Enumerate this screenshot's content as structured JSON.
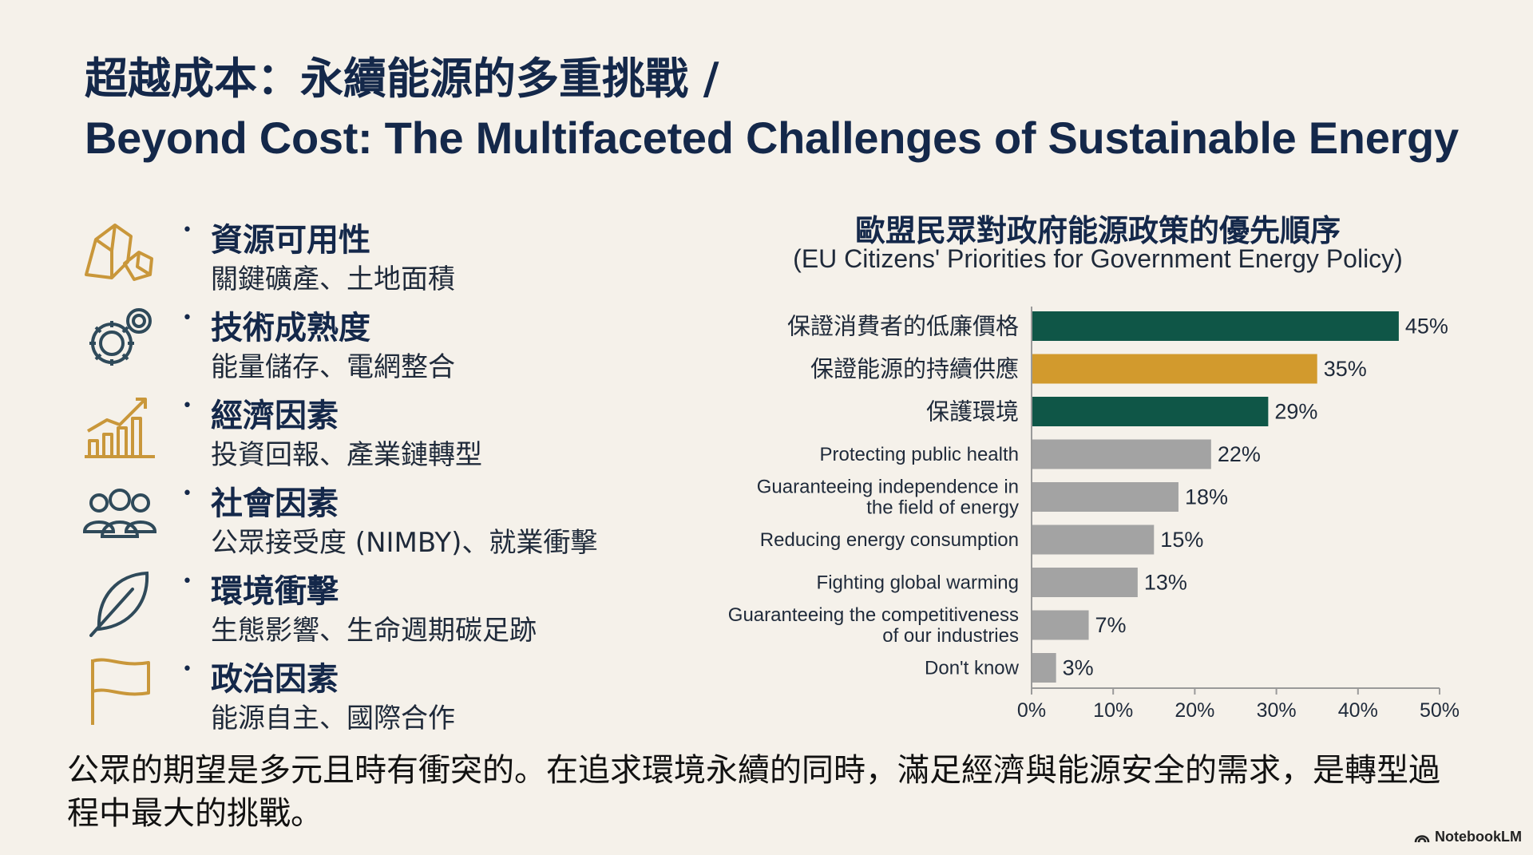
{
  "title": {
    "zh": "超越成本：永續能源的多重挑戰 /",
    "en": "Beyond Cost: The Multifaceted Challenges of Sustainable Energy"
  },
  "factors": [
    {
      "icon": "rocks-icon",
      "name": "資源可用性",
      "desc": "關鍵礦產、土地面積"
    },
    {
      "icon": "gears-icon",
      "name": "技術成熟度",
      "desc": "能量儲存、電網整合"
    },
    {
      "icon": "growth-chart-icon",
      "name": "經濟因素",
      "desc": "投資回報、產業鏈轉型"
    },
    {
      "icon": "people-icon",
      "name": "社會因素",
      "desc": "公眾接受度 (NIMBY)、就業衝擊"
    },
    {
      "icon": "leaf-icon",
      "name": "環境衝擊",
      "desc": "生態影響、生命週期碳足跡"
    },
    {
      "icon": "flag-icon",
      "name": "政治因素",
      "desc": "能源自主、國際合作"
    }
  ],
  "colors": {
    "navy": "#14284a",
    "green": "#0f5647",
    "orange": "#d29a2d",
    "gray": "#a3a3a3",
    "icon_gold": "#c9973a",
    "icon_dark": "#2f4a5a"
  },
  "chart_data": {
    "type": "bar",
    "orientation": "horizontal",
    "title": "歐盟民眾對政府能源政策的優先順序",
    "subtitle": "(EU Citizens' Priorities for Government Energy Policy)",
    "categories": [
      [
        "保證消費者的低廉價格"
      ],
      [
        "保證能源的持續供應"
      ],
      [
        "保護環境"
      ],
      [
        "Protecting public health"
      ],
      [
        "Guaranteeing independence in",
        "the field of energy"
      ],
      [
        "Reducing energy consumption"
      ],
      [
        "Fighting global warming"
      ],
      [
        "Guaranteeing the competitiveness",
        "of our industries"
      ],
      [
        "Don't know"
      ]
    ],
    "values": [
      45,
      35,
      29,
      22,
      18,
      15,
      13,
      7,
      3
    ],
    "value_labels": [
      "45%",
      "35%",
      "29%",
      "22%",
      "18%",
      "15%",
      "13%",
      "7%",
      "3%"
    ],
    "bar_colors": [
      "green",
      "orange",
      "green",
      "gray",
      "gray",
      "gray",
      "gray",
      "gray",
      "gray"
    ],
    "xlim": [
      0,
      50
    ],
    "xticks": [
      "0%",
      "10%",
      "20%",
      "30%",
      "40%",
      "50%"
    ],
    "xlabel": "",
    "ylabel": ""
  },
  "conclusion": "公眾的期望是多元且時有衝突的。在追求環境永續的同時，滿足經濟與能源安全的需求，是轉型過程中最大的挑戰。",
  "brand": "NotebookLM"
}
